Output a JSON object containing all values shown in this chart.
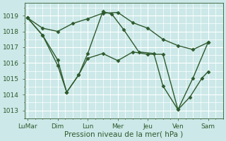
{
  "xlabel": "Pression niveau de la mer( hPa )",
  "bg_color": "#cce8e8",
  "grid_color": "#ffffff",
  "line_color": "#2d5a2d",
  "ylim": [
    1012.5,
    1019.8
  ],
  "yticks": [
    1013,
    1014,
    1015,
    1016,
    1017,
    1018,
    1019
  ],
  "x_labels": [
    "LuMar",
    "Dim",
    "Lun",
    "Mer",
    "Jeu",
    "Ven",
    "Sam"
  ],
  "x_positions": [
    0,
    1,
    2,
    3,
    4,
    5,
    6
  ],
  "xlim": [
    -0.1,
    6.5
  ],
  "series": [
    {
      "x": [
        0.0,
        0.5,
        1.0,
        1.5,
        2.0,
        2.5,
        3.0,
        3.5,
        4.0,
        4.5,
        5.0,
        5.5,
        6.0
      ],
      "y": [
        1018.85,
        1018.2,
        1018.0,
        1018.5,
        1018.8,
        1019.15,
        1019.2,
        1018.55,
        1018.2,
        1017.5,
        1017.1,
        1016.85,
        1017.3
      ]
    },
    {
      "x": [
        0.0,
        0.5,
        1.0,
        1.3,
        1.7,
        2.0,
        2.5,
        2.8,
        3.2,
        3.7,
        4.2,
        4.5,
        5.0,
        5.4,
        5.8,
        6.0
      ],
      "y": [
        1018.85,
        1017.75,
        1015.85,
        1014.15,
        1015.25,
        1016.6,
        1019.25,
        1019.1,
        1018.1,
        1016.7,
        1016.6,
        1014.55,
        1013.05,
        1013.85,
        1015.05,
        1015.45
      ]
    },
    {
      "x": [
        0.0,
        0.5,
        1.0,
        1.3,
        1.7,
        2.0,
        2.5,
        3.0,
        3.5,
        4.0,
        4.5,
        5.0,
        5.5,
        6.0
      ],
      "y": [
        1018.85,
        1017.75,
        1016.2,
        1014.15,
        1015.25,
        1016.3,
        1016.6,
        1016.15,
        1016.7,
        1016.55,
        1016.55,
        1013.05,
        1015.05,
        1017.3
      ]
    }
  ],
  "marker": "D",
  "markersize": 2.5,
  "linewidth": 1.0,
  "font_size": 6.5,
  "label_fontsize": 7.5
}
